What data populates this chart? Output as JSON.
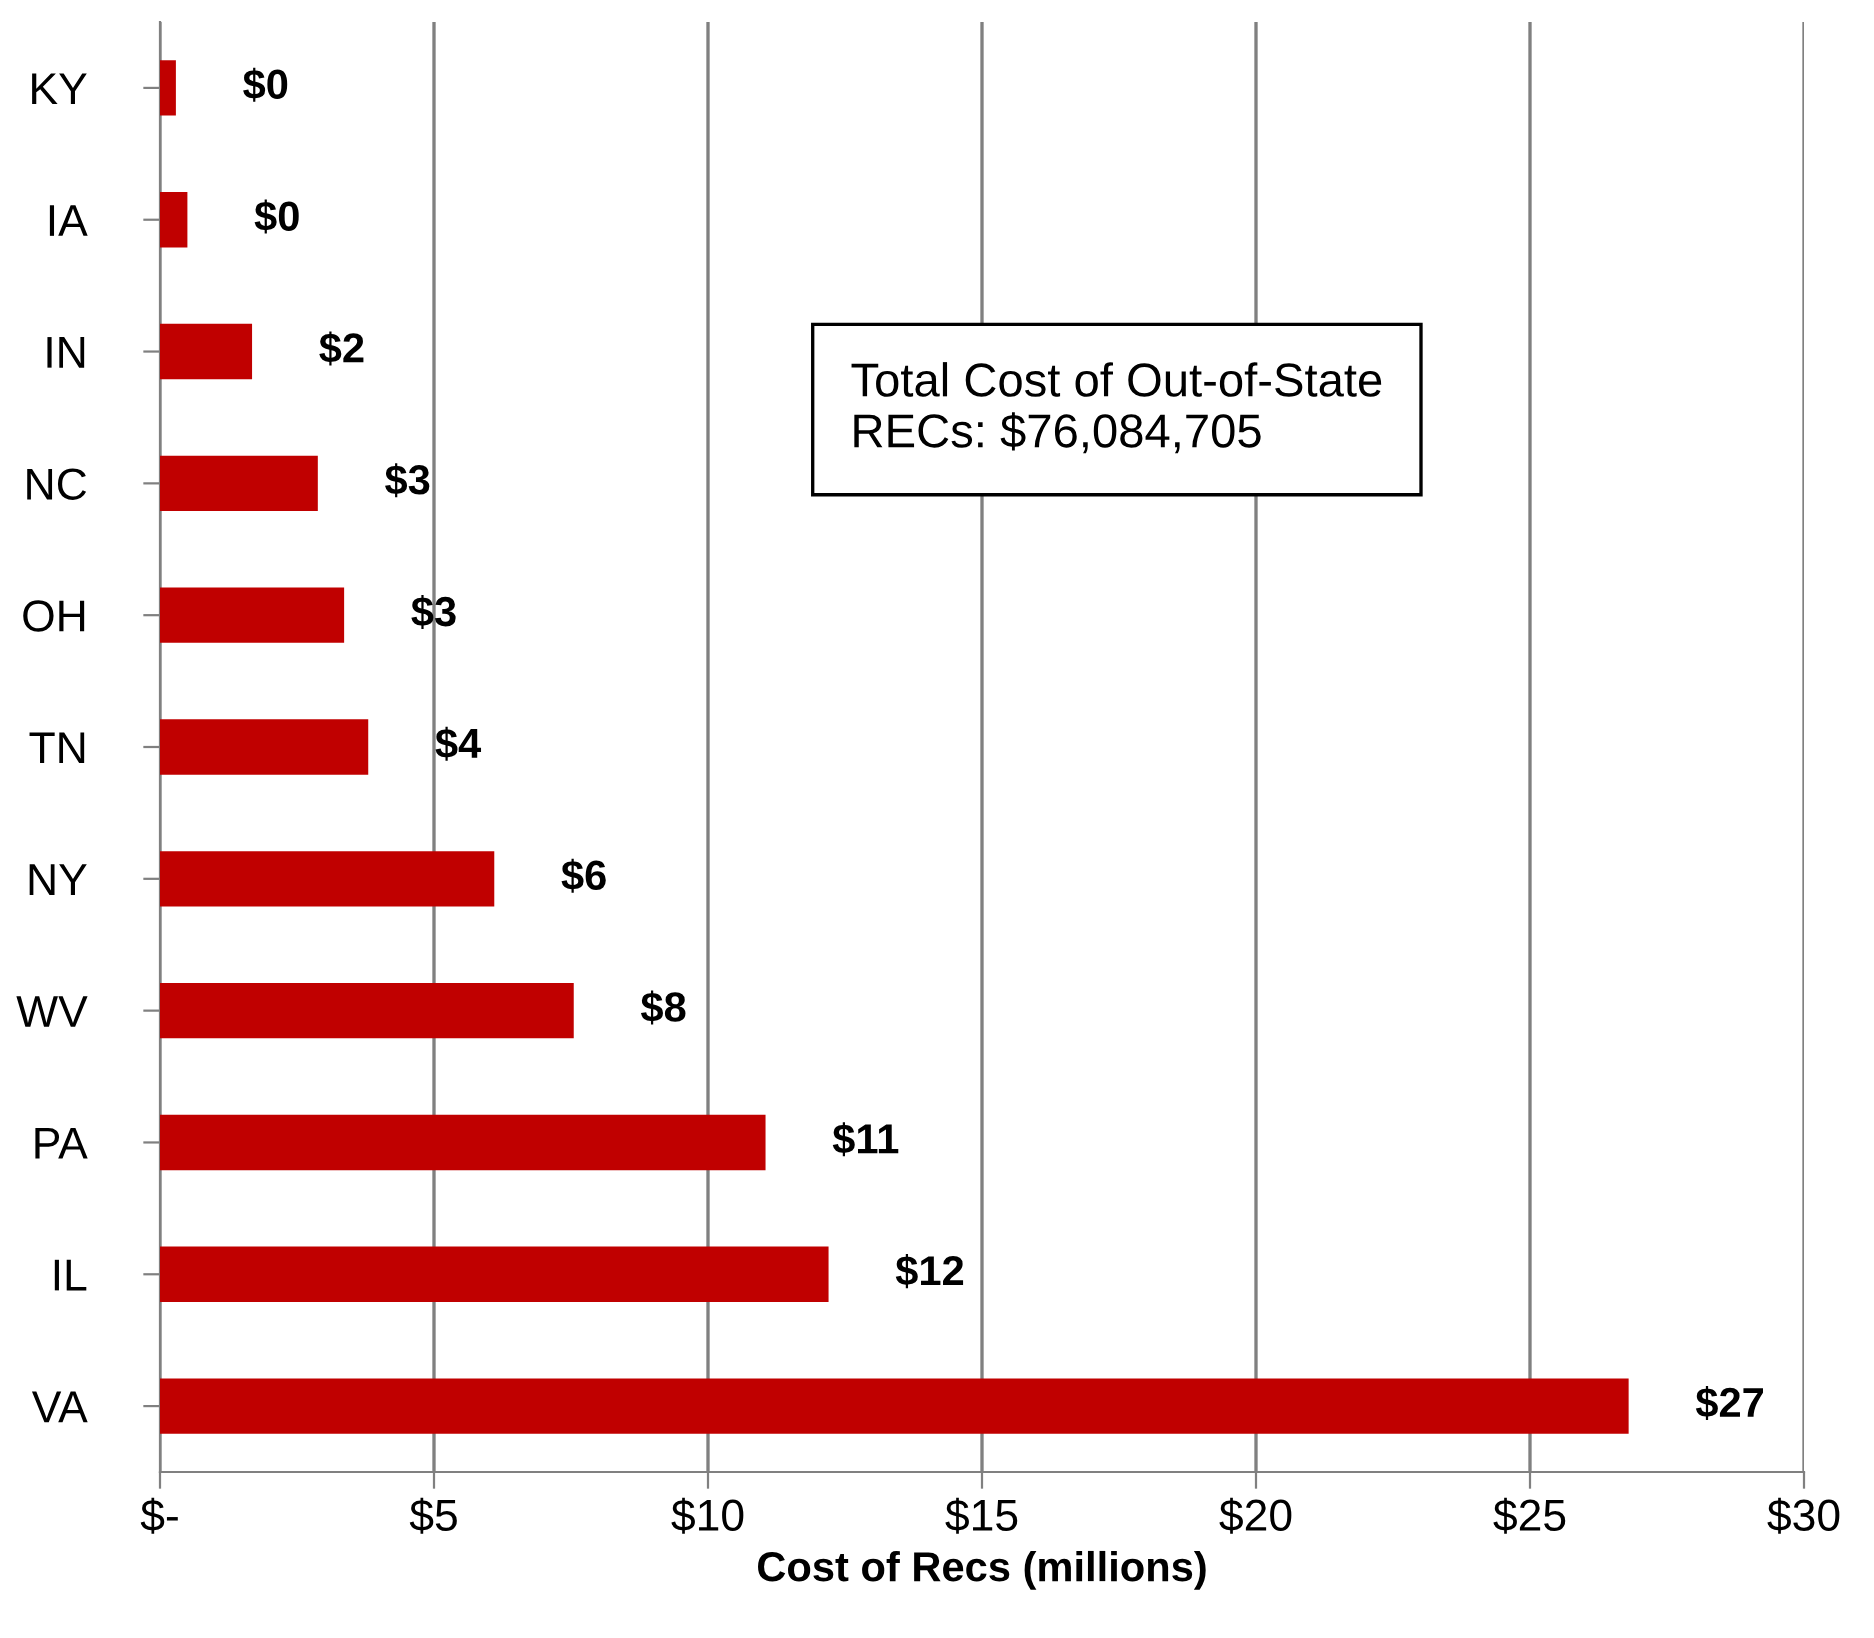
{
  "chart_data": {
    "type": "bar",
    "orientation": "horizontal",
    "xlabel": "Cost of Recs (millions)",
    "categories": [
      "KY",
      "IA",
      "IN",
      "NC",
      "OH",
      "TN",
      "NY",
      "WV",
      "PA",
      "IL",
      "VA"
    ],
    "values": [
      0.29,
      0.5,
      1.68,
      2.88,
      3.36,
      3.8,
      6.1,
      7.55,
      11.05,
      12.2,
      26.8
    ],
    "value_labels": [
      "$0",
      "$0",
      "$2",
      "$3",
      "$3",
      "$4",
      "$6",
      "$8",
      "$11",
      "$12",
      "$27"
    ],
    "color": "#c00000",
    "xlim": [
      0,
      30
    ],
    "xticks": [
      {
        "value": 0,
        "label": "$-"
      },
      {
        "value": 5,
        "label": "$5"
      },
      {
        "value": 10,
        "label": "$10"
      },
      {
        "value": 15,
        "label": "$15"
      },
      {
        "value": 20,
        "label": "$20"
      },
      {
        "value": 25,
        "label": "$25"
      },
      {
        "value": 30,
        "label": "$30"
      }
    ],
    "grid": "x",
    "legend": false,
    "annotations": [
      "Total Cost of Out-of-State\nRECs: $76,084,705"
    ]
  }
}
